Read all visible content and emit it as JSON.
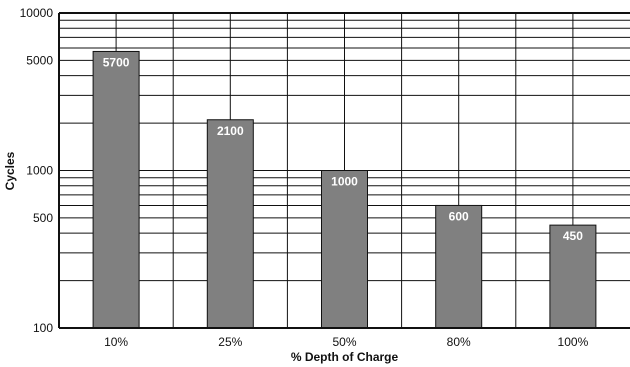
{
  "chart_data": {
    "type": "bar",
    "title": "",
    "xlabel": "% Depth of Charge",
    "ylabel": "Cycles",
    "categories": [
      "10%",
      "25%",
      "50%",
      "80%",
      "100%"
    ],
    "values": [
      5700,
      2100,
      1000,
      600,
      450
    ],
    "data_labels": [
      "5700",
      "2100",
      "1000",
      "600",
      "450"
    ],
    "y_scale": "log",
    "ylim": [
      100,
      10000
    ],
    "y_tick_values": [
      100,
      500,
      1000,
      5000,
      10000
    ],
    "y_tick_labels": [
      "100",
      "500",
      "1000",
      "5000",
      "10000"
    ],
    "grid": true,
    "legend": "none",
    "colors": {
      "bar_fill": "#808080",
      "bar_stroke": "#111111",
      "grid": "#111111",
      "frame": "#111111",
      "bar_label": "#ffffff"
    }
  }
}
